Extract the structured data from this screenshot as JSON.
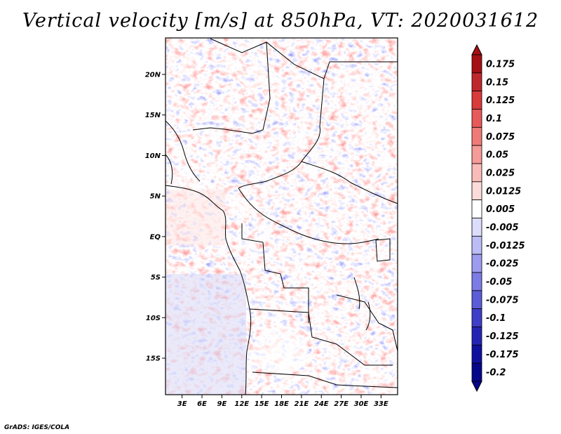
{
  "title": "Vertical velocity [m/s] at 850hPa, VT: 2020031612",
  "credit": "GrADS: IGES/COLA",
  "map": {
    "lat_labels": [
      "20N",
      "15N",
      "10N",
      "5N",
      "EQ",
      "5S",
      "10S",
      "15S"
    ],
    "lon_labels": [
      "3E",
      "6E",
      "9E",
      "12E",
      "15E",
      "18E",
      "21E",
      "24E",
      "27E",
      "30E",
      "33E"
    ],
    "lat_range": [
      -19.5,
      24.5
    ],
    "lon_range": [
      0.5,
      35.5
    ]
  },
  "colorbar": {
    "levels": [
      "0.175",
      "0.15",
      "0.125",
      "0.1",
      "0.075",
      "0.05",
      "0.025",
      "0.0125",
      "0.005",
      "-0.005",
      "-0.0125",
      "-0.025",
      "-0.05",
      "-0.075",
      "-0.1",
      "-0.125",
      "-0.175",
      "-0.2"
    ],
    "colors": [
      "#a50f15",
      "#c0272d",
      "#d93a3a",
      "#e8595a",
      "#f07a78",
      "#f59b98",
      "#f9bcb9",
      "#fcdcda",
      "#ffffff",
      "#dcdcfb",
      "#bcbcf6",
      "#9c9cf0",
      "#7c7ce6",
      "#5c5cd8",
      "#3e3ec8",
      "#2424b4",
      "#10109e",
      "#06068a"
    ]
  },
  "chart_data": {
    "type": "heatmap",
    "title": "Vertical velocity [m/s] at 850hPa, VT: 2020031612",
    "variable": "vertical velocity",
    "units": "m/s",
    "level": "850hPa",
    "valid_time": "2020031612",
    "x_axis_labels": [
      "3E",
      "6E",
      "9E",
      "12E",
      "15E",
      "18E",
      "21E",
      "24E",
      "27E",
      "30E",
      "33E"
    ],
    "y_axis_labels": [
      "20N",
      "15N",
      "10N",
      "5N",
      "EQ",
      "5S",
      "10S",
      "15S"
    ],
    "lon_range": [
      0.5,
      35.5
    ],
    "lat_range": [
      -19.5,
      24.5
    ],
    "colorbar_levels": [
      0.175,
      0.15,
      0.125,
      0.1,
      0.075,
      0.05,
      0.025,
      0.0125,
      0.005,
      -0.005,
      -0.0125,
      -0.025,
      -0.05,
      -0.075,
      -0.1,
      -0.125,
      -0.175,
      -0.2
    ]
  }
}
